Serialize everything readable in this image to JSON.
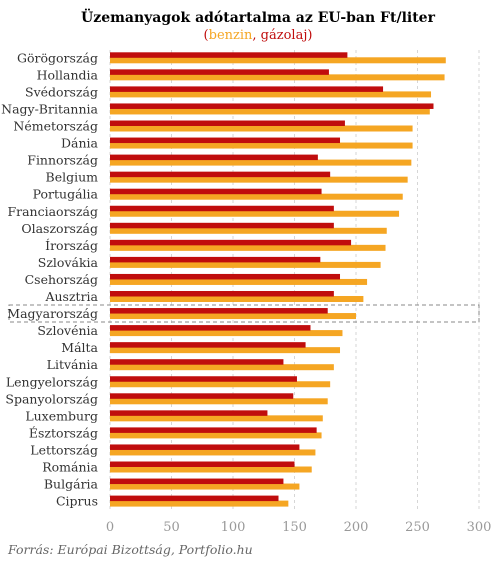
{
  "chart_data": {
    "type": "bar",
    "orientation": "horizontal",
    "title": "Üzemanyagok adótartalma az EU-ban Ft/liter",
    "subtitle": {
      "open": "(",
      "series1": "benzin",
      "sep": ", ",
      "series2": "gázolaj",
      "close": ")"
    },
    "source": "Forrás: Európai Bizottság, Portfolio.hu",
    "highlight": "Magyarország",
    "xlim": [
      0,
      300
    ],
    "xticks": [
      "0",
      "50",
      "100",
      "150",
      "200",
      "250",
      "300"
    ],
    "grid": true,
    "colors": {
      "benzin": "#f5a623",
      "gazolaj": "#c00d0d",
      "highlight_box": "#888888"
    },
    "categories": [
      "Görögország",
      "Hollandia",
      "Svédország",
      "Nagy-Britannia",
      "Németország",
      "Dánia",
      "Finnország",
      "Belgium",
      "Portugália",
      "Franciaország",
      "Olaszország",
      "Írország",
      "Szlovákia",
      "Csehország",
      "Ausztria",
      "Magyarország",
      "Szlovénia",
      "Málta",
      "Litvánia",
      "Lengyelország",
      "Spanyolország",
      "Luxemburg",
      "Észtország",
      "Lettország",
      "Románia",
      "Bulgária",
      "Ciprus"
    ],
    "series": [
      {
        "name": "benzin",
        "values": [
          273,
          272,
          261,
          260,
          246,
          246,
          245,
          242,
          238,
          235,
          225,
          224,
          220,
          209,
          206,
          200,
          189,
          187,
          182,
          179,
          177,
          173,
          172,
          167,
          164,
          154,
          145
        ]
      },
      {
        "name": "gázolaj",
        "values": [
          193,
          178,
          222,
          263,
          191,
          187,
          169,
          179,
          172,
          182,
          182,
          196,
          171,
          187,
          182,
          177,
          163,
          159,
          141,
          152,
          149,
          128,
          168,
          154,
          150,
          141,
          137
        ]
      }
    ]
  }
}
